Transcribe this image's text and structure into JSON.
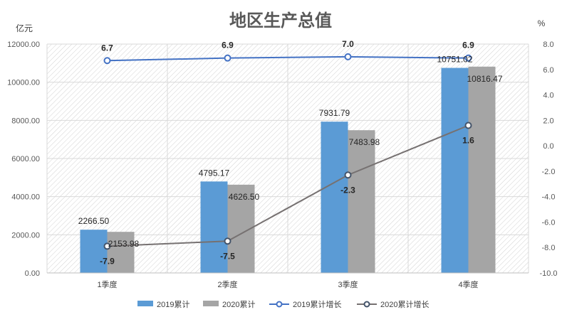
{
  "chart_data": {
    "type": "bar",
    "title": "地区生产总值",
    "left_unit": "亿元",
    "right_unit": "%",
    "categories": [
      "1季度",
      "2季度",
      "3季度",
      "4季度"
    ],
    "y_left": {
      "min": 0,
      "max": 12000,
      "ticks": [
        "0.00",
        "2000.00",
        "4000.00",
        "6000.00",
        "8000.00",
        "10000.00",
        "12000.00"
      ]
    },
    "y_right": {
      "min": -10,
      "max": 8,
      "ticks": [
        "-10.0",
        "-8.0",
        "-6.0",
        "-4.0",
        "-2.0",
        "0.0",
        "2.0",
        "4.0",
        "6.0",
        "8.0"
      ]
    },
    "bar_series": [
      {
        "name": "2019累计",
        "color": "#5b9bd5",
        "values": [
          2266.5,
          4795.17,
          7931.79,
          10751.02
        ],
        "labels": [
          "2266.50",
          "4795.17",
          "7931.79",
          "10751.02"
        ]
      },
      {
        "name": "2020累计",
        "color": "#a5a5a5",
        "values": [
          2153.98,
          4626.5,
          7483.98,
          10816.47
        ],
        "labels": [
          "2153.98",
          "4626.50",
          "7483.98",
          "10816.47"
        ]
      }
    ],
    "line_series": [
      {
        "name": "2019累计增长",
        "color": "#4472c4",
        "values": [
          6.7,
          6.9,
          7.0,
          6.9
        ],
        "labels": [
          "6.7",
          "6.9",
          "7.0",
          "6.9"
        ]
      },
      {
        "name": "2020累计增长",
        "color": "#767171",
        "values": [
          -7.9,
          -7.5,
          -2.3,
          1.6
        ],
        "labels": [
          "-7.9",
          "-7.5",
          "-2.3",
          "1.6"
        ]
      }
    ],
    "grid": true,
    "plot_background": "hatched",
    "legend_position": "bottom"
  }
}
